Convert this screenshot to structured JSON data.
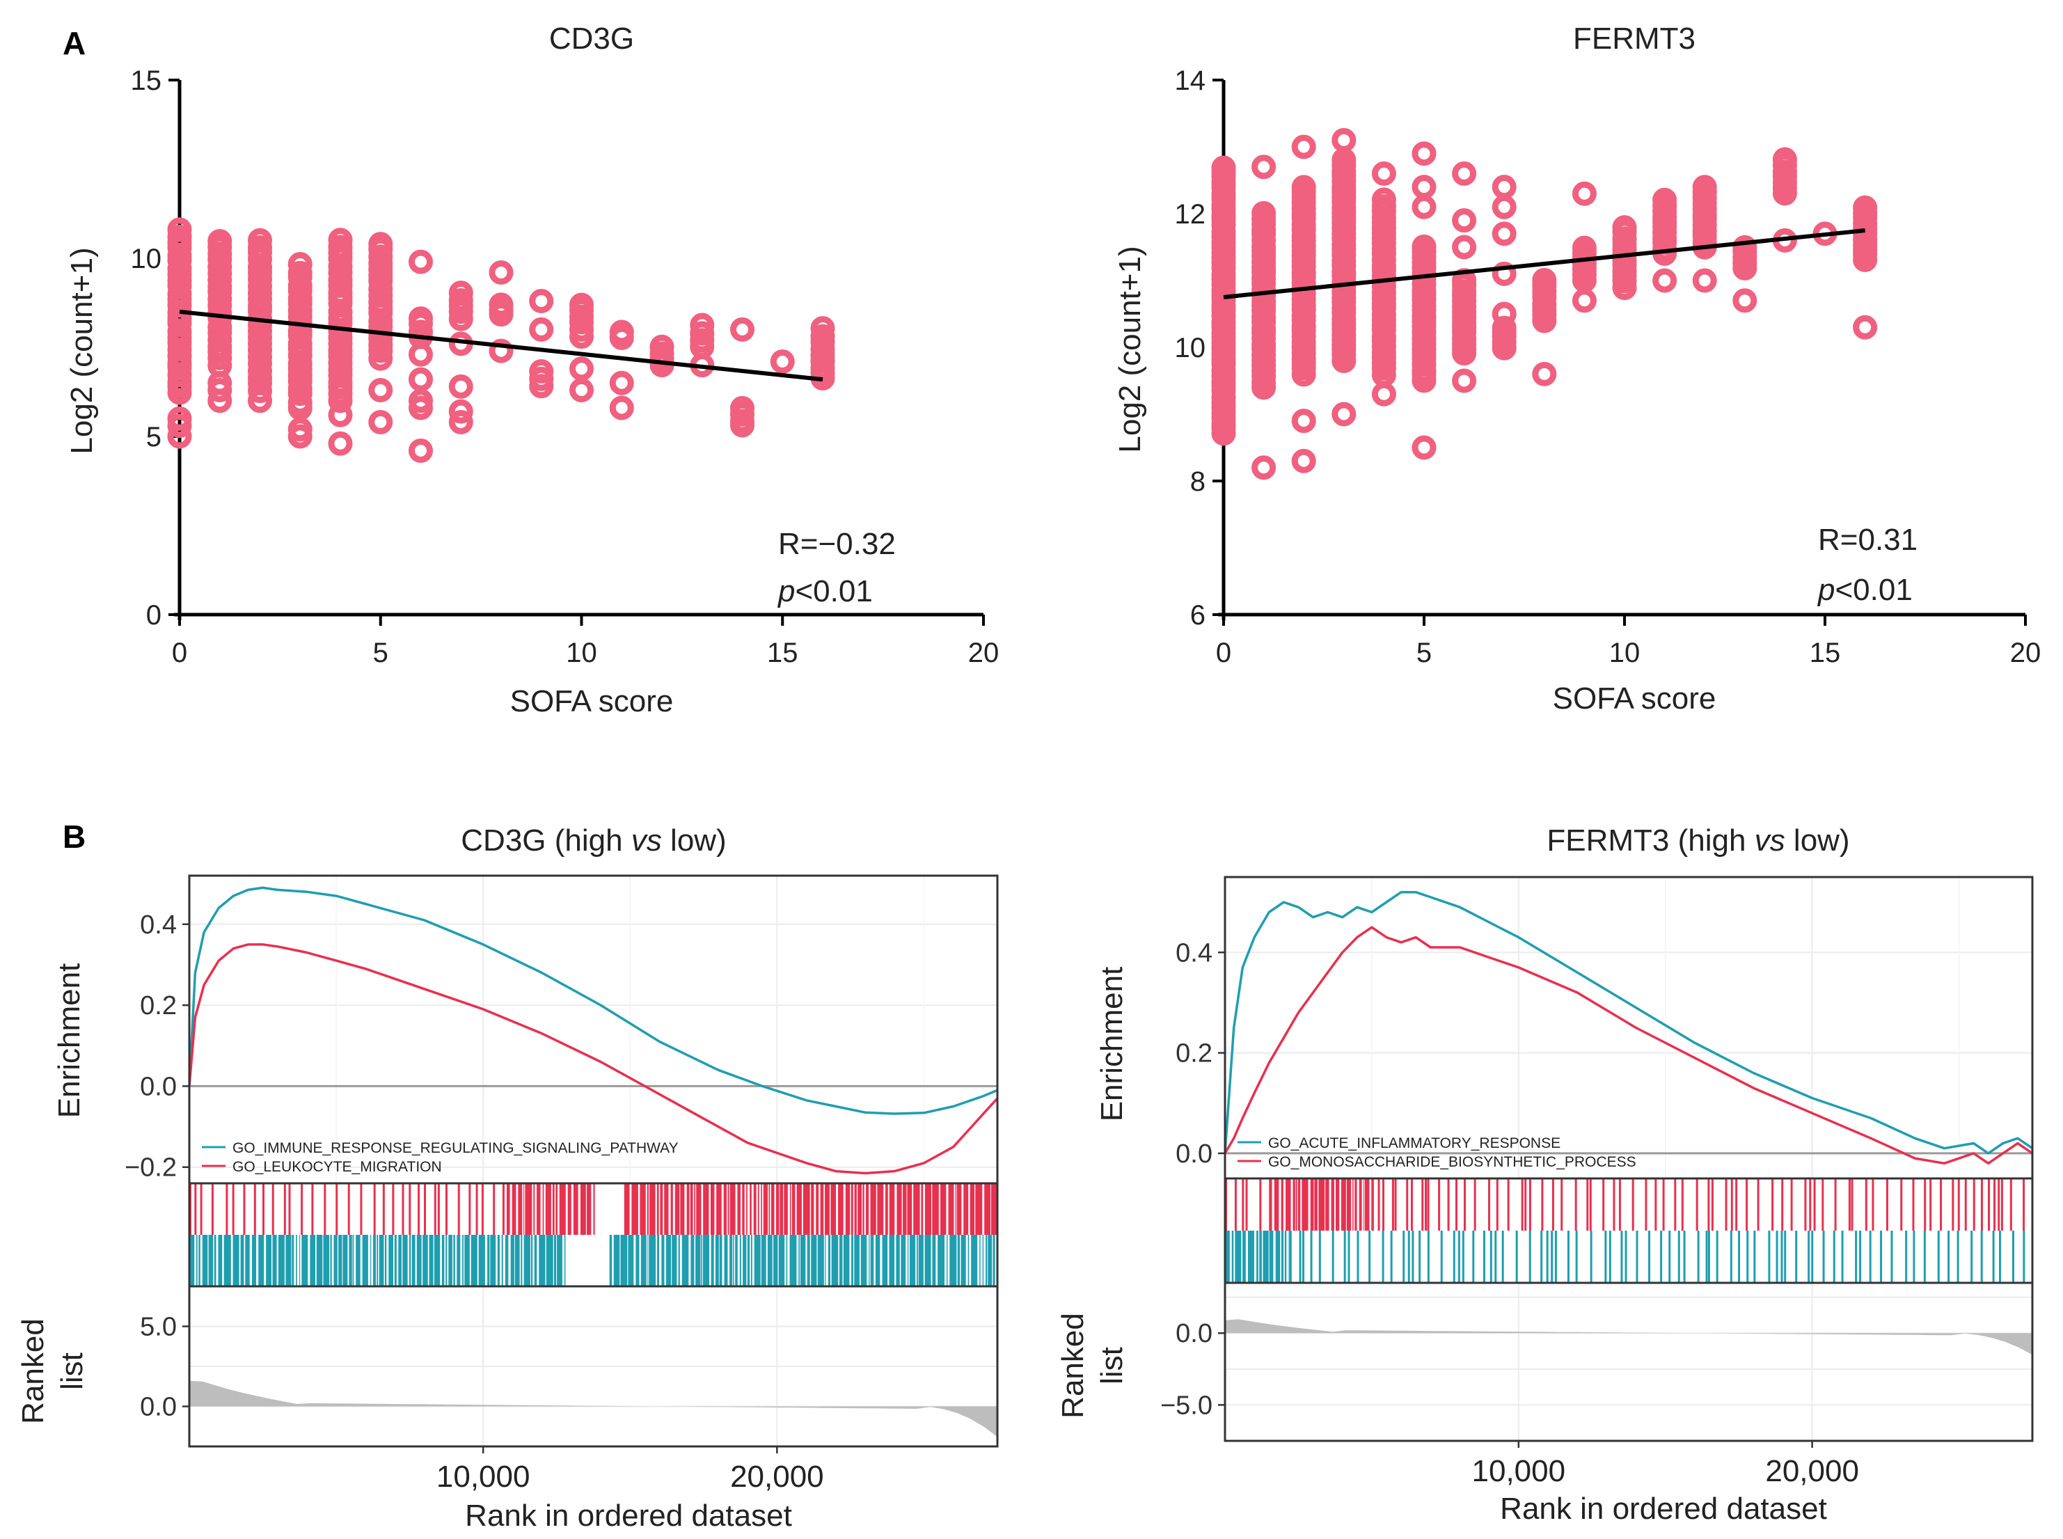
{
  "figure": {
    "panel_a_label": "A",
    "panel_b_label": "B"
  },
  "chart_data": [
    {
      "type": "scatter",
      "title": "CD3G",
      "xlabel": "SOFA score",
      "ylabel": "Log2 (count+1)",
      "xlim": [
        0,
        20
      ],
      "ylim": [
        0,
        15
      ],
      "xticks": [
        "0",
        "5",
        "10",
        "15",
        "20"
      ],
      "yticks": [
        "0",
        "5",
        "10",
        "15"
      ],
      "color": "#f0607f",
      "stat_r": "R=−0.32",
      "stat_p_italic": "p",
      "stat_p_rest": "<0.01",
      "fit_line": {
        "x": [
          0,
          16
        ],
        "y": [
          8.5,
          6.6
        ]
      },
      "columns": [
        {
          "x": 0,
          "range": [
            6.2,
            10.8
          ],
          "extra": [
            5.0,
            5.3,
            5.5
          ]
        },
        {
          "x": 1,
          "range": [
            7.0,
            10.5
          ],
          "extra": [
            6.0,
            6.3,
            6.5
          ]
        },
        {
          "x": 2,
          "range": [
            6.3,
            10.5
          ],
          "extra": [
            6.0
          ]
        },
        {
          "x": 3,
          "range": [
            5.8,
            9.8
          ],
          "extra": [
            5.0,
            5.2
          ]
        },
        {
          "x": 4,
          "range": [
            6.0,
            10.5
          ],
          "extra": [
            4.8,
            5.6
          ]
        },
        {
          "x": 5,
          "range": [
            7.2,
            10.4
          ],
          "extra": [
            5.4,
            6.3
          ]
        },
        {
          "x": 6,
          "range": [
            7.8,
            8.3
          ],
          "extra": [
            4.6,
            5.8,
            6.0,
            6.6,
            7.3,
            9.9
          ]
        },
        {
          "x": 7,
          "range": [
            8.3,
            9.0
          ],
          "extra": [
            5.4,
            5.7,
            6.4,
            7.6
          ]
        },
        {
          "x": 8,
          "range": [
            8.4,
            8.7
          ],
          "extra": [
            7.4,
            9.6
          ]
        },
        {
          "x": 9,
          "range": [
            6.4,
            6.8
          ],
          "extra": [
            8.0,
            8.8
          ]
        },
        {
          "x": 10,
          "range": [
            8.0,
            8.7
          ],
          "extra": [
            6.3,
            6.9,
            7.8
          ]
        },
        {
          "x": 11,
          "range": [
            7.8,
            7.9
          ],
          "extra": [
            5.8,
            6.5
          ]
        },
        {
          "x": 12,
          "range": [
            7.0,
            7.5
          ],
          "extra": []
        },
        {
          "x": 13,
          "range": [
            7.5,
            8.1
          ],
          "extra": [
            7.0
          ]
        },
        {
          "x": 14,
          "range": [
            5.3,
            5.8
          ],
          "extra": [
            8.0
          ]
        },
        {
          "x": 15,
          "range": [
            7.1,
            7.1
          ],
          "extra": []
        },
        {
          "x": 16,
          "range": [
            6.6,
            8.0
          ],
          "extra": [
            7.1
          ]
        }
      ]
    },
    {
      "type": "scatter",
      "title": "FERMT3",
      "xlabel": "SOFA score",
      "ylabel": "Log2 (count+1)",
      "xlim": [
        0,
        20
      ],
      "ylim": [
        6,
        14
      ],
      "xticks": [
        "0",
        "5",
        "10",
        "15",
        "20"
      ],
      "yticks": [
        "6",
        "8",
        "10",
        "12",
        "14"
      ],
      "color": "#f0607f",
      "stat_r": "R=0.31",
      "stat_p_italic": "p",
      "stat_p_rest": "<0.01",
      "fit_line": {
        "x": [
          0,
          16
        ],
        "y": [
          10.75,
          11.75
        ]
      },
      "columns": [
        {
          "x": 0,
          "range": [
            8.7,
            12.7
          ],
          "extra": []
        },
        {
          "x": 1,
          "range": [
            9.4,
            12.0
          ],
          "extra": [
            8.2,
            12.7
          ]
        },
        {
          "x": 2,
          "range": [
            9.6,
            12.4
          ],
          "extra": [
            8.3,
            8.9,
            13.0
          ]
        },
        {
          "x": 3,
          "range": [
            9.8,
            12.8
          ],
          "extra": [
            9.0,
            13.1
          ]
        },
        {
          "x": 4,
          "range": [
            9.6,
            12.2
          ],
          "extra": [
            9.3,
            12.6
          ]
        },
        {
          "x": 5,
          "range": [
            9.5,
            11.5
          ],
          "extra": [
            8.5,
            12.1,
            12.4,
            12.9
          ]
        },
        {
          "x": 6,
          "range": [
            9.9,
            11.0
          ],
          "extra": [
            9.5,
            11.5,
            11.9,
            12.6
          ]
        },
        {
          "x": 7,
          "range": [
            10.0,
            10.3
          ],
          "extra": [
            10.5,
            11.1,
            11.7,
            12.1,
            12.4
          ]
        },
        {
          "x": 8,
          "range": [
            10.4,
            11.0
          ],
          "extra": [
            9.6
          ]
        },
        {
          "x": 9,
          "range": [
            11.0,
            11.5
          ],
          "extra": [
            10.7,
            12.3
          ]
        },
        {
          "x": 10,
          "range": [
            10.9,
            11.8
          ],
          "extra": []
        },
        {
          "x": 11,
          "range": [
            11.4,
            12.2
          ],
          "extra": [
            11.0
          ]
        },
        {
          "x": 12,
          "range": [
            11.5,
            12.4
          ],
          "extra": [
            11.0
          ]
        },
        {
          "x": 13,
          "range": [
            11.2,
            11.5
          ],
          "extra": [
            10.7
          ]
        },
        {
          "x": 14,
          "range": [
            12.3,
            12.8
          ],
          "extra": [
            11.6
          ]
        },
        {
          "x": 15,
          "range": [
            11.7,
            11.7
          ],
          "extra": []
        },
        {
          "x": 16,
          "range": [
            11.3,
            12.1
          ],
          "extra": [
            10.3
          ]
        }
      ]
    },
    {
      "type": "line",
      "title_pre": "CD3G (high ",
      "title_em": "vs",
      "title_post": " low)",
      "ylabel": "Enrichment",
      "ylabel2": "Ranked",
      "ylabel3": "list",
      "xlabel": "Rank in ordered dataset",
      "xlim": [
        0,
        27500
      ],
      "ylim": [
        -0.24,
        0.52
      ],
      "xticks": [
        "10,000",
        "20,000"
      ],
      "xtick_values": [
        10000,
        20000
      ],
      "yticks": [
        "0.4",
        "0.2",
        "0.0",
        "−0.2"
      ],
      "ytick_values": [
        0.4,
        0.2,
        0.0,
        -0.2
      ],
      "rank_ylim": [
        -2.5,
        7.5
      ],
      "rank_yticks": [
        "5.0",
        "0.0"
      ],
      "rank_ytick_values": [
        5.0,
        0.0
      ],
      "rank_start": 1.6,
      "rank_end": -1.9,
      "series": [
        {
          "name": "GO_IMMUNE_RESPONSE_REGULATING_SIGNALING_PATHWAY",
          "color": "#1f9eb0",
          "x": [
            0,
            200,
            500,
            1000,
            1500,
            2000,
            2500,
            3000,
            4000,
            5000,
            6000,
            8000,
            10000,
            12000,
            14000,
            16000,
            18000,
            19500,
            21000,
            22000,
            23000,
            24000,
            25000,
            26000,
            27000,
            27500
          ],
          "y": [
            0.0,
            0.28,
            0.38,
            0.44,
            0.47,
            0.485,
            0.49,
            0.485,
            0.48,
            0.47,
            0.45,
            0.41,
            0.35,
            0.28,
            0.2,
            0.11,
            0.04,
            0.0,
            -0.035,
            -0.05,
            -0.065,
            -0.068,
            -0.066,
            -0.05,
            -0.025,
            -0.01
          ]
        },
        {
          "name": "GO_LEUKOCYTE_MIGRATION",
          "color": "#e8304f",
          "x": [
            0,
            200,
            500,
            1000,
            1500,
            2000,
            2500,
            3000,
            4000,
            5000,
            6000,
            8000,
            10000,
            12000,
            14000,
            15500,
            17000,
            19000,
            21000,
            22000,
            23000,
            24000,
            25000,
            26000,
            27000,
            27500
          ],
          "y": [
            0.0,
            0.17,
            0.25,
            0.31,
            0.34,
            0.35,
            0.35,
            0.345,
            0.33,
            0.31,
            0.29,
            0.24,
            0.19,
            0.13,
            0.06,
            0.0,
            -0.06,
            -0.14,
            -0.19,
            -0.21,
            -0.215,
            -0.21,
            -0.19,
            -0.15,
            -0.07,
            -0.03
          ]
        }
      ],
      "hits": [
        {
          "color": "#e8304f",
          "dense_ranges": [
            [
              10800,
              13800
            ],
            [
              14800,
              27500
            ]
          ],
          "sparse_ranges": [
            [
              0,
              10800
            ]
          ],
          "gap_ranges": [
            [
              13800,
              14800
            ]
          ]
        },
        {
          "color": "#1f9eb0",
          "dense_ranges": [
            [
              0,
              12800
            ],
            [
              14300,
              27500
            ]
          ],
          "sparse_ranges": [],
          "gap_ranges": [
            [
              12800,
              14300
            ]
          ]
        }
      ]
    },
    {
      "type": "line",
      "title_pre": "FERMT3 (high ",
      "title_em": "vs",
      "title_post": " low)",
      "ylabel": "Enrichment",
      "ylabel2": "Ranked",
      "ylabel3": "list",
      "xlabel": "Rank in ordered dataset",
      "xlim": [
        0,
        27500
      ],
      "ylim": [
        -0.05,
        0.55
      ],
      "xticks": [
        "10,000",
        "20,000"
      ],
      "xtick_values": [
        10000,
        20000
      ],
      "yticks": [
        "0.4",
        "0.2",
        "0.0"
      ],
      "ytick_values": [
        0.4,
        0.2,
        0.0
      ],
      "rank_ylim": [
        -7.5,
        3.5
      ],
      "rank_yticks": [
        "0.0",
        "−5.0"
      ],
      "rank_ytick_values": [
        0.0,
        -5.0
      ],
      "rank_start": 0.9,
      "rank_end": -1.5,
      "series": [
        {
          "name": "GO_ACUTE_INFLAMMATORY_RESPONSE",
          "color": "#1f9eb0",
          "x": [
            0,
            300,
            600,
            1000,
            1500,
            2000,
            2500,
            3000,
            3500,
            4000,
            4500,
            5000,
            5500,
            6000,
            6500,
            7000,
            8000,
            9000,
            10000,
            12000,
            14000,
            16000,
            18000,
            20000,
            22000,
            23500,
            24500,
            25500,
            26000,
            26500,
            27000,
            27500
          ],
          "y": [
            0.0,
            0.25,
            0.37,
            0.43,
            0.48,
            0.5,
            0.49,
            0.47,
            0.48,
            0.47,
            0.49,
            0.48,
            0.5,
            0.52,
            0.52,
            0.51,
            0.49,
            0.46,
            0.43,
            0.36,
            0.29,
            0.22,
            0.16,
            0.11,
            0.07,
            0.03,
            0.01,
            0.02,
            0.0,
            0.02,
            0.03,
            0.01
          ]
        },
        {
          "name": "GO_MONOSACCHARIDE_BIOSYNTHETIC_PROCESS",
          "color": "#e8304f",
          "x": [
            0,
            300,
            600,
            1000,
            1500,
            2000,
            2500,
            3000,
            3500,
            4000,
            4500,
            5000,
            5500,
            6000,
            6500,
            7000,
            8000,
            9000,
            10000,
            12000,
            14000,
            16000,
            18000,
            20000,
            22000,
            23500,
            24500,
            25500,
            26000,
            26500,
            27000,
            27500
          ],
          "y": [
            0.0,
            0.03,
            0.07,
            0.12,
            0.18,
            0.23,
            0.28,
            0.32,
            0.36,
            0.4,
            0.43,
            0.45,
            0.43,
            0.42,
            0.43,
            0.41,
            0.41,
            0.39,
            0.37,
            0.32,
            0.25,
            0.19,
            0.13,
            0.08,
            0.03,
            -0.01,
            -0.02,
            0.0,
            -0.02,
            0.0,
            0.02,
            0.0
          ]
        }
      ],
      "hits": [
        {
          "color": "#e8304f",
          "dense_ranges": [
            [
              1500,
              5000
            ]
          ],
          "sparse_ranges": [
            [
              0,
              1500
            ],
            [
              5000,
              27500
            ]
          ],
          "gap_ranges": []
        },
        {
          "color": "#1f9eb0",
          "dense_ranges": [
            [
              0,
              2200
            ]
          ],
          "sparse_ranges": [
            [
              2200,
              27500
            ]
          ],
          "gap_ranges": []
        }
      ]
    }
  ]
}
